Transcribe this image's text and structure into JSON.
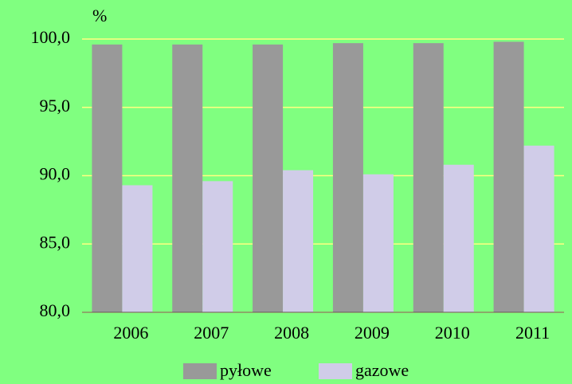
{
  "chart_data": {
    "type": "bar",
    "y_label": "%",
    "categories": [
      "2006",
      "2007",
      "2008",
      "2009",
      "2010",
      "2011"
    ],
    "series": [
      {
        "name": "pyłowe",
        "color": "#999999",
        "values": [
          99.6,
          99.6,
          99.6,
          99.7,
          99.7,
          99.8
        ]
      },
      {
        "name": "gazowe",
        "color": "#d0cce8",
        "values": [
          89.3,
          89.6,
          90.4,
          90.1,
          90.8,
          92.2
        ]
      }
    ],
    "ylim": [
      80,
      100
    ],
    "yticks": [
      {
        "value": 80,
        "label": "80,0"
      },
      {
        "value": 85,
        "label": "85,0"
      },
      {
        "value": 90,
        "label": "90,0"
      },
      {
        "value": 95,
        "label": "95,0"
      },
      {
        "value": 100,
        "label": "100,0"
      }
    ],
    "grid": true,
    "grid_color": "#ffff80",
    "background": "#80ff80",
    "legend": "bottom"
  }
}
